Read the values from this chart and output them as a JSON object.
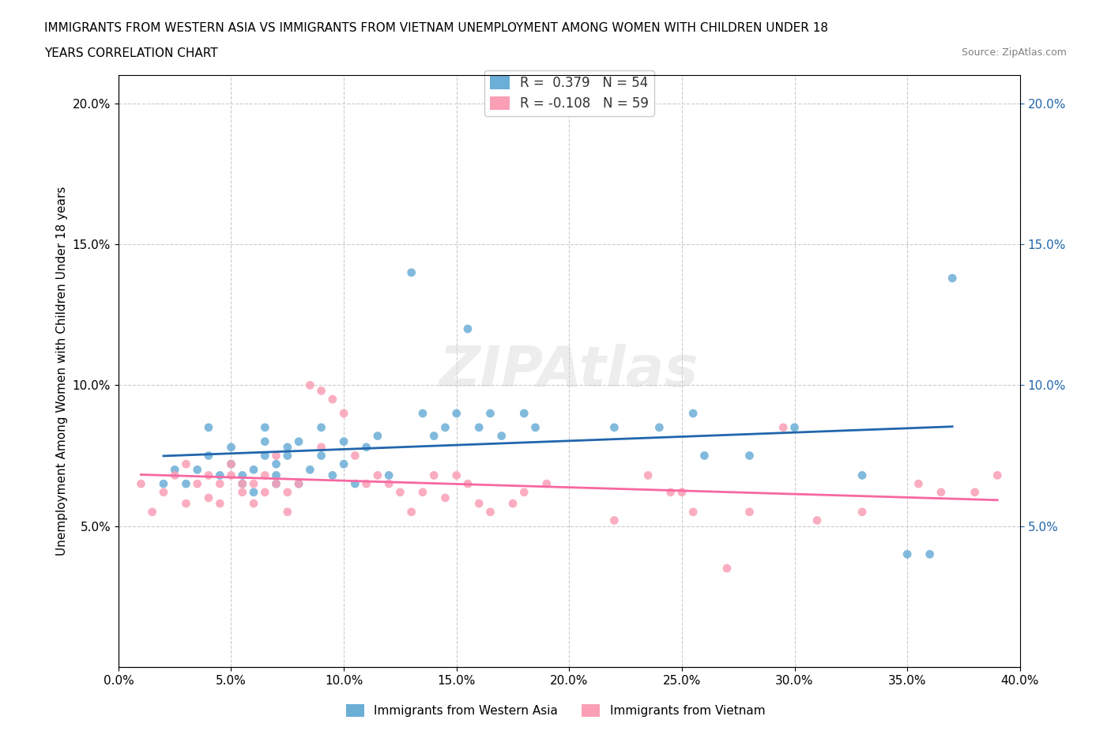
{
  "title_line1": "IMMIGRANTS FROM WESTERN ASIA VS IMMIGRANTS FROM VIETNAM UNEMPLOYMENT AMONG WOMEN WITH CHILDREN UNDER 18",
  "title_line2": "YEARS CORRELATION CHART",
  "source": "Source: ZipAtlas.com",
  "xlabel": "",
  "ylabel": "Unemployment Among Women with Children Under 18 years",
  "r_blue": 0.379,
  "n_blue": 54,
  "r_pink": -0.108,
  "n_pink": 59,
  "xlim": [
    0.0,
    0.4
  ],
  "ylim": [
    0.0,
    0.21
  ],
  "yticks": [
    0.05,
    0.1,
    0.15,
    0.2
  ],
  "xticks": [
    0.0,
    0.05,
    0.1,
    0.15,
    0.2,
    0.25,
    0.3,
    0.35,
    0.4
  ],
  "watermark": "ZIPAtlas",
  "blue_color": "#6baed6",
  "pink_color": "#fa9fb5",
  "blue_line_color": "#2166ac",
  "pink_line_color": "#f768a1",
  "grid_color": "#cccccc",
  "blue_scatter": [
    [
      0.02,
      0.065
    ],
    [
      0.025,
      0.07
    ],
    [
      0.03,
      0.065
    ],
    [
      0.035,
      0.07
    ],
    [
      0.04,
      0.075
    ],
    [
      0.04,
      0.085
    ],
    [
      0.045,
      0.068
    ],
    [
      0.05,
      0.072
    ],
    [
      0.05,
      0.078
    ],
    [
      0.055,
      0.065
    ],
    [
      0.055,
      0.068
    ],
    [
      0.06,
      0.062
    ],
    [
      0.06,
      0.07
    ],
    [
      0.065,
      0.075
    ],
    [
      0.065,
      0.08
    ],
    [
      0.065,
      0.085
    ],
    [
      0.07,
      0.065
    ],
    [
      0.07,
      0.068
    ],
    [
      0.07,
      0.072
    ],
    [
      0.075,
      0.078
    ],
    [
      0.075,
      0.075
    ],
    [
      0.08,
      0.065
    ],
    [
      0.08,
      0.08
    ],
    [
      0.085,
      0.07
    ],
    [
      0.09,
      0.075
    ],
    [
      0.09,
      0.085
    ],
    [
      0.095,
      0.068
    ],
    [
      0.1,
      0.072
    ],
    [
      0.1,
      0.08
    ],
    [
      0.105,
      0.065
    ],
    [
      0.11,
      0.078
    ],
    [
      0.115,
      0.082
    ],
    [
      0.12,
      0.068
    ],
    [
      0.13,
      0.14
    ],
    [
      0.135,
      0.09
    ],
    [
      0.14,
      0.082
    ],
    [
      0.145,
      0.085
    ],
    [
      0.15,
      0.09
    ],
    [
      0.155,
      0.12
    ],
    [
      0.16,
      0.085
    ],
    [
      0.165,
      0.09
    ],
    [
      0.17,
      0.082
    ],
    [
      0.18,
      0.09
    ],
    [
      0.185,
      0.085
    ],
    [
      0.22,
      0.085
    ],
    [
      0.24,
      0.085
    ],
    [
      0.255,
      0.09
    ],
    [
      0.26,
      0.075
    ],
    [
      0.28,
      0.075
    ],
    [
      0.3,
      0.085
    ],
    [
      0.33,
      0.068
    ],
    [
      0.35,
      0.04
    ],
    [
      0.36,
      0.04
    ],
    [
      0.37,
      0.138
    ]
  ],
  "pink_scatter": [
    [
      0.01,
      0.065
    ],
    [
      0.015,
      0.055
    ],
    [
      0.02,
      0.062
    ],
    [
      0.025,
      0.068
    ],
    [
      0.03,
      0.058
    ],
    [
      0.03,
      0.072
    ],
    [
      0.035,
      0.065
    ],
    [
      0.04,
      0.06
    ],
    [
      0.04,
      0.068
    ],
    [
      0.045,
      0.065
    ],
    [
      0.045,
      0.058
    ],
    [
      0.05,
      0.072
    ],
    [
      0.05,
      0.068
    ],
    [
      0.055,
      0.062
    ],
    [
      0.055,
      0.065
    ],
    [
      0.06,
      0.058
    ],
    [
      0.06,
      0.065
    ],
    [
      0.065,
      0.062
    ],
    [
      0.065,
      0.068
    ],
    [
      0.07,
      0.075
    ],
    [
      0.07,
      0.065
    ],
    [
      0.075,
      0.062
    ],
    [
      0.075,
      0.055
    ],
    [
      0.08,
      0.065
    ],
    [
      0.085,
      0.1
    ],
    [
      0.09,
      0.098
    ],
    [
      0.09,
      0.078
    ],
    [
      0.095,
      0.095
    ],
    [
      0.1,
      0.09
    ],
    [
      0.105,
      0.075
    ],
    [
      0.11,
      0.065
    ],
    [
      0.115,
      0.068
    ],
    [
      0.12,
      0.065
    ],
    [
      0.125,
      0.062
    ],
    [
      0.13,
      0.055
    ],
    [
      0.135,
      0.062
    ],
    [
      0.14,
      0.068
    ],
    [
      0.145,
      0.06
    ],
    [
      0.15,
      0.068
    ],
    [
      0.155,
      0.065
    ],
    [
      0.16,
      0.058
    ],
    [
      0.165,
      0.055
    ],
    [
      0.175,
      0.058
    ],
    [
      0.18,
      0.062
    ],
    [
      0.19,
      0.065
    ],
    [
      0.22,
      0.052
    ],
    [
      0.235,
      0.068
    ],
    [
      0.245,
      0.062
    ],
    [
      0.25,
      0.062
    ],
    [
      0.255,
      0.055
    ],
    [
      0.27,
      0.035
    ],
    [
      0.28,
      0.055
    ],
    [
      0.295,
      0.085
    ],
    [
      0.31,
      0.052
    ],
    [
      0.33,
      0.055
    ],
    [
      0.355,
      0.065
    ],
    [
      0.365,
      0.062
    ],
    [
      0.38,
      0.062
    ],
    [
      0.39,
      0.068
    ]
  ]
}
